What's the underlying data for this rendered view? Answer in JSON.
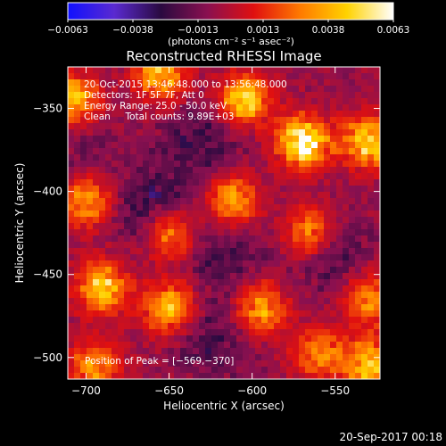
{
  "chart_data": {
    "type": "heatmap",
    "title": "Reconstructed RHESSI Image",
    "xlabel": "Heliocentric X (arcsec)",
    "ylabel": "Heliocentric Y (arcsec)",
    "x_range": [
      -711,
      -523
    ],
    "y_range": [
      -513,
      -325
    ],
    "x_ticks": [
      -700,
      -650,
      -600,
      -550
    ],
    "x_tick_labels": [
      "−700",
      "−650",
      "−600",
      "−550"
    ],
    "y_ticks": [
      -350,
      -400,
      -450,
      -500
    ],
    "y_tick_labels": [
      "−350",
      "−400",
      "−450",
      "−500"
    ],
    "colorbar": {
      "range": [
        -0.0063,
        0.0063
      ],
      "tick_labels": [
        "−0.0063",
        "−0.0038",
        "−0.0013",
        "0.0013",
        "0.0038",
        "0.0063"
      ],
      "unit_label": "(photons cm⁻² s⁻¹ asec⁻²)",
      "colors": [
        "#1010ff",
        "#5a2ad0",
        "#2a0a40",
        "#8a1050",
        "#e01010",
        "#ff7a00",
        "#ffd200",
        "#ffffff"
      ]
    },
    "annotations": [
      "20-Oct-2015 13:46:48.000 to 13:56:48.000",
      "Detectors: 1F 5F 7F, Att 0",
      "Energy Range: 25.0 - 50.0 keV",
      "Clean     Total counts: 9.89E+03"
    ],
    "peak_label": "Position of Peak = [−569,−370]",
    "peak_position": [
      -569,
      -370
    ],
    "sources": [
      {
        "x": -708,
        "y": -345,
        "amp": 0.0048
      },
      {
        "x": -655,
        "y": -330,
        "amp": 0.0045
      },
      {
        "x": -605,
        "y": -345,
        "amp": 0.005
      },
      {
        "x": -569,
        "y": -370,
        "amp": 0.0063
      },
      {
        "x": -530,
        "y": -370,
        "amp": 0.0052
      },
      {
        "x": -700,
        "y": -405,
        "amp": 0.0044
      },
      {
        "x": -612,
        "y": -405,
        "amp": 0.0042
      },
      {
        "x": -650,
        "y": -425,
        "amp": 0.004
      },
      {
        "x": -565,
        "y": -425,
        "amp": 0.004
      },
      {
        "x": -690,
        "y": -458,
        "amp": 0.005
      },
      {
        "x": -650,
        "y": -470,
        "amp": 0.0046
      },
      {
        "x": -595,
        "y": -470,
        "amp": 0.0042
      },
      {
        "x": -530,
        "y": -465,
        "amp": 0.0036
      },
      {
        "x": -695,
        "y": -505,
        "amp": 0.0038
      },
      {
        "x": -560,
        "y": -498,
        "amp": 0.0036
      },
      {
        "x": -528,
        "y": -505,
        "amp": 0.0052
      }
    ],
    "negative_lobes": [
      {
        "x": -630,
        "y": -372,
        "amp": -0.0018
      },
      {
        "x": -660,
        "y": -410,
        "amp": -0.0022
      },
      {
        "x": -553,
        "y": -438,
        "amp": -0.0016
      },
      {
        "x": -615,
        "y": -440,
        "amp": -0.0014
      },
      {
        "x": -625,
        "y": -488,
        "amp": -0.0015
      },
      {
        "x": -705,
        "y": -380,
        "amp": -0.001
      }
    ]
  },
  "timestamp": "20-Sep-2017 00:18"
}
